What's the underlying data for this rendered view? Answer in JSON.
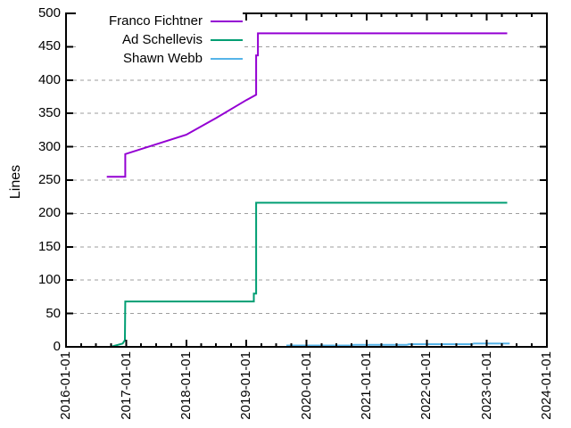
{
  "chart_data": {
    "type": "line",
    "title": "",
    "xlabel": "",
    "ylabel": "Lines",
    "ylim": [
      0,
      500
    ],
    "yticks": [
      0,
      50,
      100,
      150,
      200,
      250,
      300,
      350,
      400,
      450,
      500
    ],
    "xlim": [
      "2016-01-01",
      "2024-01-01"
    ],
    "xticks": [
      "2016-01-01",
      "2017-01-01",
      "2018-01-01",
      "2019-01-01",
      "2020-01-01",
      "2021-01-01",
      "2022-01-01",
      "2023-01-01",
      "2024-01-01"
    ],
    "x_minor_ticks": "quarterly",
    "grid": "horizontal-dashed",
    "legend_position": "top-left-inside",
    "colors": {
      "background": "#ffffff",
      "axis": "#000000",
      "grid": "#9e9e9e"
    },
    "series": [
      {
        "name": "Franco Fichtner",
        "color": "#9400d3",
        "points": [
          [
            "2016-09-05",
            255
          ],
          [
            "2016-12-26",
            255
          ],
          [
            "2016-12-26",
            289
          ],
          [
            "2018-01-01",
            318
          ],
          [
            "2018-07-01",
            343
          ],
          [
            "2019-01-01",
            370
          ],
          [
            "2019-03-01",
            378
          ],
          [
            "2019-03-01",
            437
          ],
          [
            "2019-03-12",
            437
          ],
          [
            "2019-03-12",
            470
          ],
          [
            "2023-05-05",
            470
          ]
        ]
      },
      {
        "name": "Ad Schellevis",
        "color": "#009e73",
        "points": [
          [
            "2016-09-28",
            0
          ],
          [
            "2016-12-10",
            5
          ],
          [
            "2016-12-24",
            10
          ],
          [
            "2016-12-26",
            68
          ],
          [
            "2019-02-15",
            68
          ],
          [
            "2019-02-15",
            80
          ],
          [
            "2019-03-01",
            80
          ],
          [
            "2019-03-01",
            216
          ],
          [
            "2023-05-05",
            216
          ]
        ]
      },
      {
        "name": "Shawn Webb",
        "color": "#56b4e9",
        "points": [
          [
            "2019-09-01",
            2
          ],
          [
            "2020-10-01",
            2
          ],
          [
            "2020-10-15",
            3
          ],
          [
            "2021-09-01",
            3
          ],
          [
            "2021-09-15",
            4
          ],
          [
            "2022-10-01",
            4
          ],
          [
            "2022-10-15",
            5
          ],
          [
            "2023-05-20",
            5
          ]
        ]
      }
    ]
  }
}
